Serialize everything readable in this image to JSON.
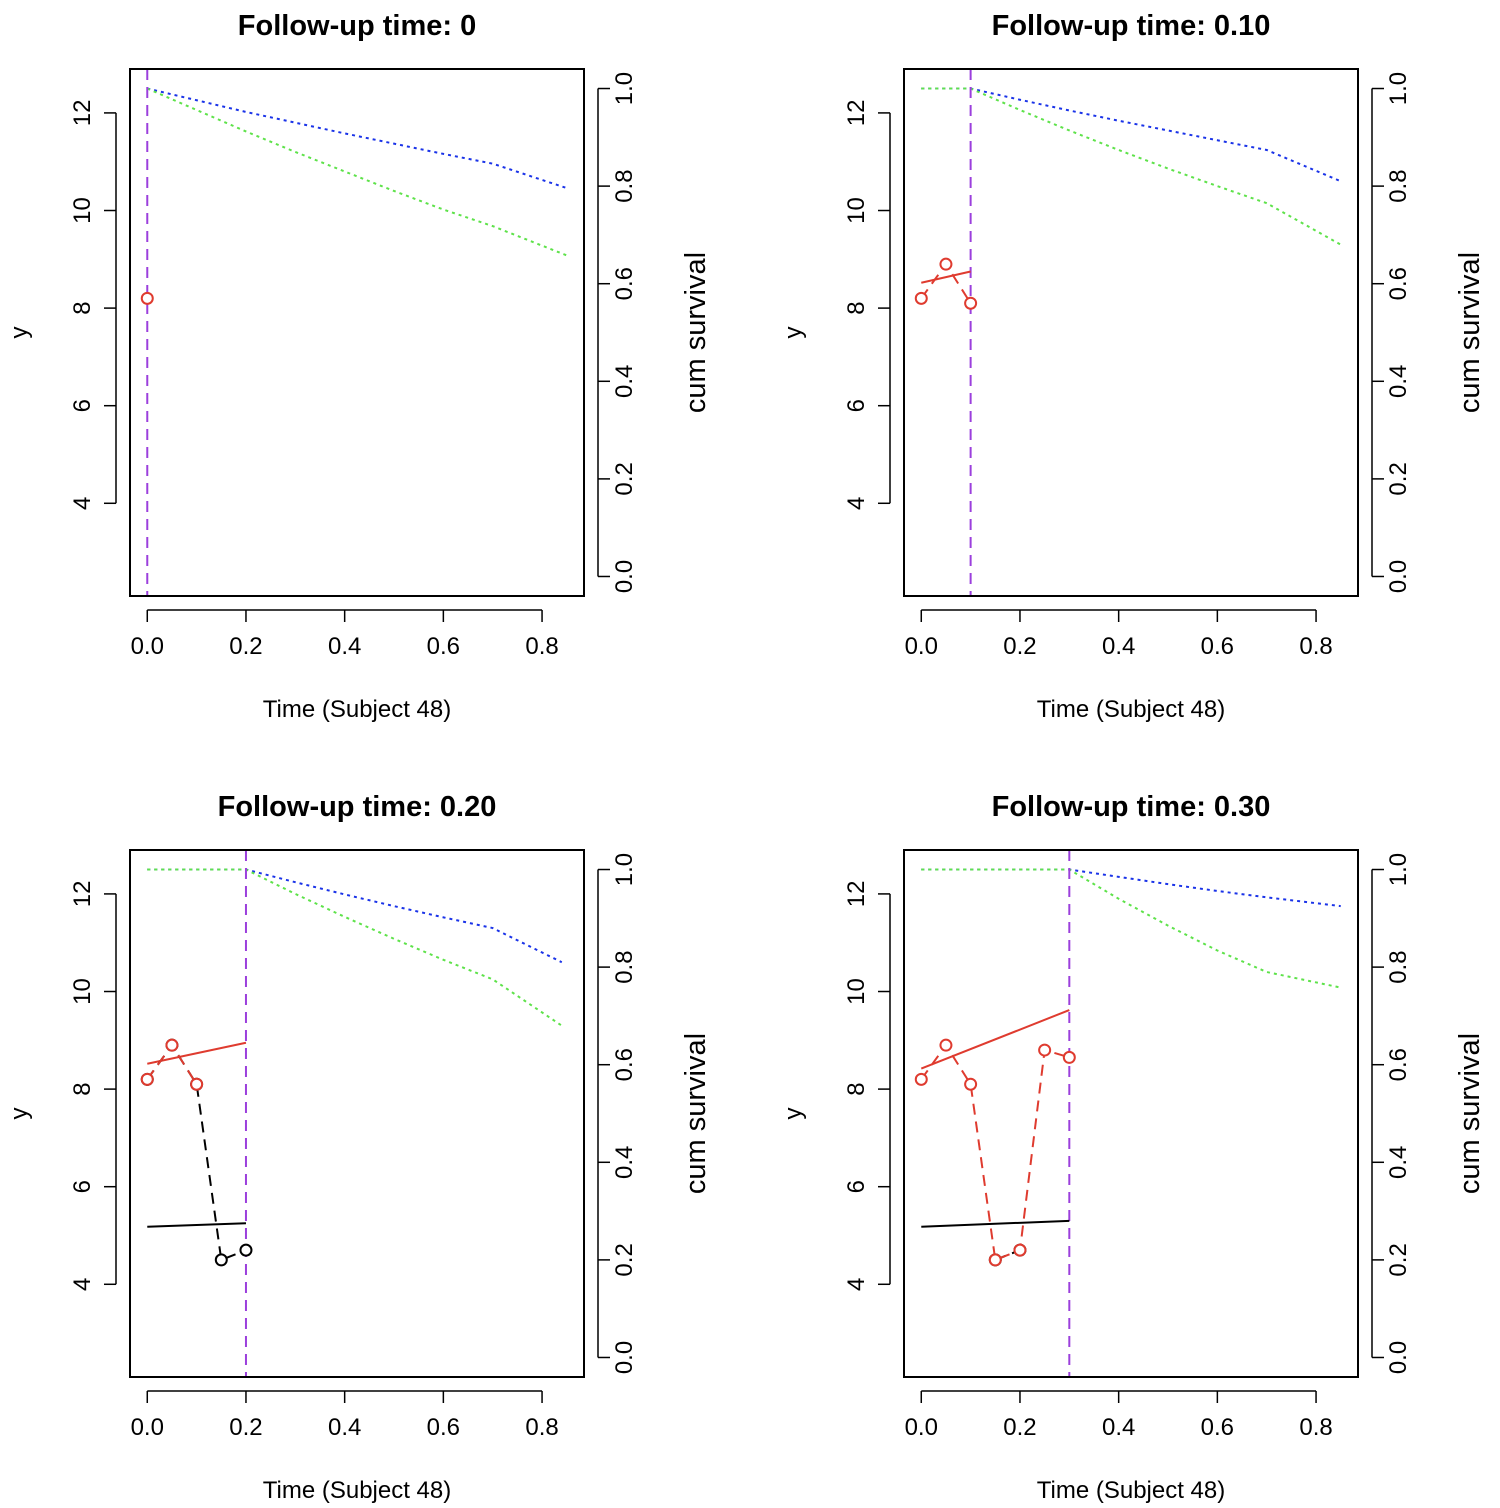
{
  "chart_data": [
    {
      "type": "line",
      "title": "Follow-up time: 0",
      "xlabel": "Time (Subject 48)",
      "ylabel": "y",
      "ylabel_right": "cum survival",
      "xlim": [
        -0.035,
        0.885
      ],
      "ylim": [
        2.1,
        12.9
      ],
      "ylim_right": [
        -0.04,
        1.04
      ],
      "x_ticks": [
        "0.0",
        "0.2",
        "0.4",
        "0.6",
        "0.8"
      ],
      "y_ticks": [
        "4",
        "6",
        "8",
        "10",
        "12"
      ],
      "y_right_ticks": [
        "0.0",
        "0.2",
        "0.4",
        "0.6",
        "0.8",
        "1.0"
      ],
      "followup_time": 0,
      "colors": {
        "event": "#df3b2f",
        "censored": "#000000",
        "vline": "#9b3fdc",
        "surv_upper": "#1a33e8",
        "surv_lower": "#5ee24a"
      },
      "series": [
        {
          "name": "observed-event",
          "x": [
            0.0
          ],
          "y": [
            8.2
          ]
        },
        {
          "name": "observed-censored",
          "x": [],
          "y": []
        },
        {
          "name": "fit-event",
          "x": [],
          "y": []
        },
        {
          "name": "fit-censored",
          "x": [],
          "y": []
        },
        {
          "name": "survival-upper",
          "x": [
            0.0,
            0.1,
            0.2,
            0.3,
            0.4,
            0.5,
            0.6,
            0.7,
            0.85
          ],
          "y": [
            1.0,
            0.976,
            0.952,
            0.93,
            0.908,
            0.887,
            0.866,
            0.846,
            0.796
          ]
        },
        {
          "name": "survival-lower",
          "x": [
            0.0,
            0.1,
            0.2,
            0.3,
            0.4,
            0.5,
            0.6,
            0.7,
            0.85
          ],
          "y": [
            1.0,
            0.956,
            0.912,
            0.87,
            0.83,
            0.79,
            0.752,
            0.718,
            0.658
          ]
        }
      ]
    },
    {
      "type": "line",
      "title": "Follow-up time: 0.10",
      "xlabel": "Time (Subject 48)",
      "ylabel": "y",
      "ylabel_right": "cum survival",
      "xlim": [
        -0.035,
        0.885
      ],
      "ylim": [
        2.1,
        12.9
      ],
      "ylim_right": [
        -0.04,
        1.04
      ],
      "x_ticks": [
        "0.0",
        "0.2",
        "0.4",
        "0.6",
        "0.8"
      ],
      "y_ticks": [
        "4",
        "6",
        "8",
        "10",
        "12"
      ],
      "y_right_ticks": [
        "0.0",
        "0.2",
        "0.4",
        "0.6",
        "0.8",
        "1.0"
      ],
      "followup_time": 0.1,
      "colors": {
        "event": "#df3b2f",
        "censored": "#000000",
        "vline": "#9b3fdc",
        "surv_upper": "#1a33e8",
        "surv_lower": "#5ee24a"
      },
      "series": [
        {
          "name": "observed-event",
          "x": [
            0.0,
            0.05,
            0.1
          ],
          "y": [
            8.2,
            8.9,
            8.1
          ]
        },
        {
          "name": "observed-censored",
          "x": [],
          "y": []
        },
        {
          "name": "fit-event",
          "x": [
            0.0,
            0.1
          ],
          "y": [
            8.52,
            8.75
          ]
        },
        {
          "name": "fit-censored",
          "x": [],
          "y": []
        },
        {
          "name": "survival-upper",
          "x": [
            0.0,
            0.1,
            0.2,
            0.3,
            0.4,
            0.5,
            0.6,
            0.7,
            0.85
          ],
          "y": [
            1.0,
            1.0,
            0.977,
            0.955,
            0.934,
            0.914,
            0.894,
            0.874,
            0.81
          ]
        },
        {
          "name": "survival-lower",
          "x": [
            0.0,
            0.1,
            0.2,
            0.3,
            0.4,
            0.5,
            0.6,
            0.7,
            0.85
          ],
          "y": [
            1.0,
            1.0,
            0.956,
            0.914,
            0.874,
            0.836,
            0.8,
            0.765,
            0.68
          ]
        }
      ]
    },
    {
      "type": "line",
      "title": "Follow-up time: 0.20",
      "xlabel": "Time (Subject 48)",
      "ylabel": "y",
      "ylabel_right": "cum survival",
      "xlim": [
        -0.035,
        0.885
      ],
      "ylim": [
        2.1,
        12.9
      ],
      "ylim_right": [
        -0.04,
        1.04
      ],
      "x_ticks": [
        "0.0",
        "0.2",
        "0.4",
        "0.6",
        "0.8"
      ],
      "y_ticks": [
        "4",
        "6",
        "8",
        "10",
        "12"
      ],
      "y_right_ticks": [
        "0.0",
        "0.2",
        "0.4",
        "0.6",
        "0.8",
        "1.0"
      ],
      "followup_time": 0.2,
      "colors": {
        "event": "#df3b2f",
        "censored": "#000000",
        "vline": "#9b3fdc",
        "surv_upper": "#1a33e8",
        "surv_lower": "#5ee24a"
      },
      "series": [
        {
          "name": "observed-event",
          "x": [
            0.0,
            0.05,
            0.1
          ],
          "y": [
            8.2,
            8.9,
            8.1
          ]
        },
        {
          "name": "observed-censored",
          "x": [
            0.0,
            0.05,
            0.1,
            0.15,
            0.2
          ],
          "y": [
            8.2,
            8.9,
            8.1,
            4.5,
            4.7
          ]
        },
        {
          "name": "fit-event",
          "x": [
            0.0,
            0.2
          ],
          "y": [
            8.52,
            8.95
          ]
        },
        {
          "name": "fit-censored",
          "x": [
            0.0,
            0.2
          ],
          "y": [
            5.18,
            5.25
          ]
        },
        {
          "name": "survival-upper",
          "x": [
            0.0,
            0.2,
            0.3,
            0.4,
            0.5,
            0.6,
            0.7,
            0.84
          ],
          "y": [
            1.0,
            1.0,
            0.974,
            0.949,
            0.925,
            0.902,
            0.88,
            0.81
          ]
        },
        {
          "name": "survival-lower",
          "x": [
            0.0,
            0.2,
            0.3,
            0.4,
            0.5,
            0.6,
            0.7,
            0.84
          ],
          "y": [
            1.0,
            1.0,
            0.95,
            0.903,
            0.858,
            0.815,
            0.775,
            0.68
          ]
        }
      ]
    },
    {
      "type": "line",
      "title": "Follow-up time: 0.30",
      "xlabel": "Time (Subject 48)",
      "ylabel": "y",
      "ylabel_right": "cum survival",
      "xlim": [
        -0.035,
        0.885
      ],
      "ylim": [
        2.1,
        12.9
      ],
      "ylim_right": [
        -0.04,
        1.04
      ],
      "x_ticks": [
        "0.0",
        "0.2",
        "0.4",
        "0.6",
        "0.8"
      ],
      "y_ticks": [
        "4",
        "6",
        "8",
        "10",
        "12"
      ],
      "y_right_ticks": [
        "0.0",
        "0.2",
        "0.4",
        "0.6",
        "0.8",
        "1.0"
      ],
      "followup_time": 0.3,
      "colors": {
        "event": "#df3b2f",
        "censored": "#000000",
        "vline": "#9b3fdc",
        "surv_upper": "#1a33e8",
        "surv_lower": "#5ee24a"
      },
      "series": [
        {
          "name": "observed-event",
          "x": [
            0.0,
            0.05,
            0.1,
            0.15,
            0.2,
            0.25,
            0.3
          ],
          "y": [
            8.2,
            8.9,
            8.1,
            4.5,
            4.7,
            8.8,
            8.65
          ]
        },
        {
          "name": "observed-censored",
          "x": [
            0.15,
            0.2
          ],
          "y": [
            4.5,
            4.7
          ]
        },
        {
          "name": "fit-event",
          "x": [
            0.0,
            0.3
          ],
          "y": [
            8.42,
            9.62
          ]
        },
        {
          "name": "fit-censored",
          "x": [
            0.0,
            0.3
          ],
          "y": [
            5.18,
            5.3
          ]
        },
        {
          "name": "survival-upper",
          "x": [
            0.0,
            0.3,
            0.4,
            0.5,
            0.6,
            0.7,
            0.85
          ],
          "y": [
            1.0,
            1.0,
            0.985,
            0.97,
            0.956,
            0.943,
            0.925
          ]
        },
        {
          "name": "survival-lower",
          "x": [
            0.0,
            0.3,
            0.4,
            0.5,
            0.6,
            0.7,
            0.85
          ],
          "y": [
            1.0,
            1.0,
            0.94,
            0.885,
            0.834,
            0.79,
            0.758
          ]
        }
      ]
    }
  ]
}
